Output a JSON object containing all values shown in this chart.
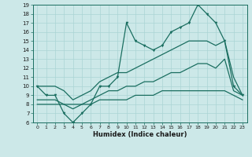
{
  "xlabel": "Humidex (Indice chaleur)",
  "x": [
    0,
    1,
    2,
    3,
    4,
    5,
    6,
    7,
    8,
    9,
    10,
    11,
    12,
    13,
    14,
    15,
    16,
    17,
    18,
    19,
    20,
    21,
    22,
    23
  ],
  "line1": [
    10,
    9,
    9,
    7,
    6,
    7,
    8,
    10,
    10,
    11,
    17,
    15,
    14.5,
    14,
    14.5,
    16,
    16.5,
    17,
    19,
    18,
    17,
    15,
    10,
    9
  ],
  "line2": [
    10,
    10,
    10,
    9.5,
    8.5,
    9,
    9.5,
    10.5,
    11,
    11.5,
    11.5,
    12,
    12.5,
    13,
    13.5,
    14,
    14.5,
    15,
    15,
    15,
    14.5,
    15,
    11,
    9
  ],
  "line3": [
    8.5,
    8.5,
    8.5,
    8,
    7.5,
    8,
    8.5,
    9,
    9.5,
    9.5,
    10,
    10,
    10.5,
    10.5,
    11,
    11.5,
    11.5,
    12,
    12.5,
    12.5,
    12,
    13,
    9.5,
    9
  ],
  "line4": [
    8,
    8,
    8,
    8,
    8,
    8,
    8,
    8.5,
    8.5,
    8.5,
    8.5,
    9,
    9,
    9,
    9.5,
    9.5,
    9.5,
    9.5,
    9.5,
    9.5,
    9.5,
    9.5,
    9,
    8.5
  ],
  "bg_color": "#cce8e8",
  "grid_color": "#aad4d4",
  "line_color": "#1a6e60",
  "ylim": [
    6,
    19
  ],
  "xlim": [
    0,
    23
  ],
  "yticks": [
    6,
    7,
    8,
    9,
    10,
    11,
    12,
    13,
    14,
    15,
    16,
    17,
    18,
    19
  ],
  "xticks": [
    0,
    1,
    2,
    3,
    4,
    5,
    6,
    7,
    8,
    9,
    10,
    11,
    12,
    13,
    14,
    15,
    16,
    17,
    18,
    19,
    20,
    21,
    22,
    23
  ],
  "xtick_labels": [
    "0",
    "1",
    "2",
    "3",
    "4",
    "5",
    "6",
    "7",
    "8",
    "9",
    "10",
    "11",
    "12",
    "13",
    "14",
    "15",
    "16",
    "17",
    "18",
    "19",
    "20",
    "21",
    "22",
    "23"
  ]
}
